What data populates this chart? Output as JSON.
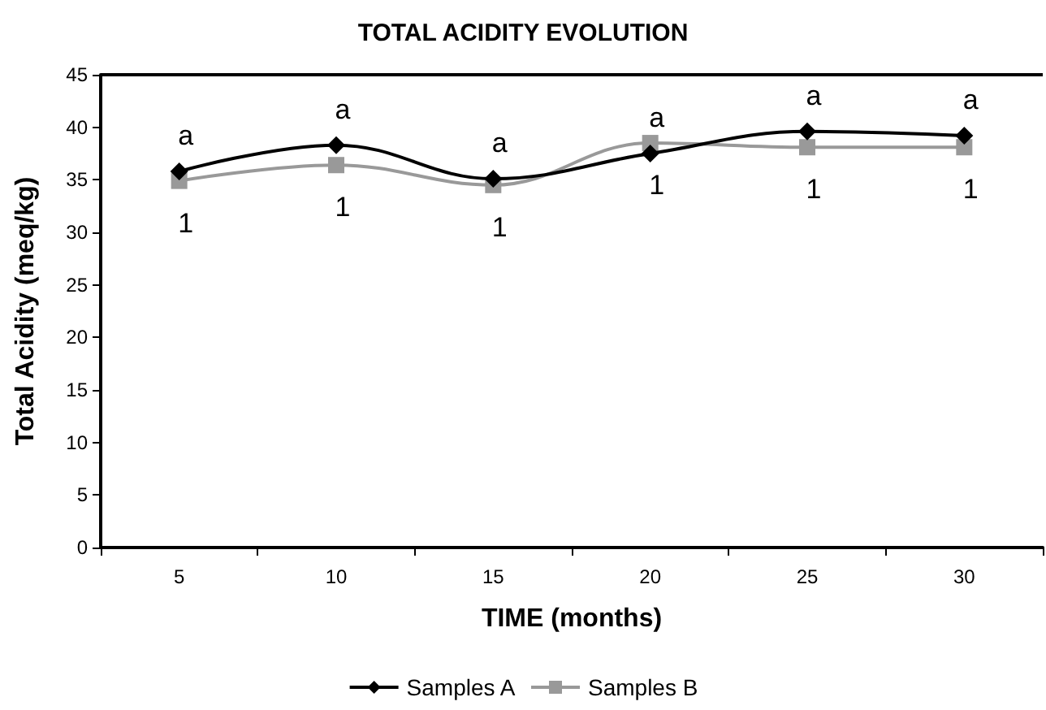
{
  "chart_data": {
    "type": "line",
    "title": "TOTAL ACIDITY EVOLUTION",
    "xlabel": "TIME (months)",
    "ylabel": "Total Acidity (meq/kg)",
    "categories": [
      "5",
      "10",
      "15",
      "20",
      "25",
      "30"
    ],
    "series": [
      {
        "name": "Samples A",
        "color": "#000000",
        "marker": "diamond",
        "values": [
          35.8,
          38.3,
          35.1,
          37.5,
          39.6,
          39.2
        ]
      },
      {
        "name": "Samples B",
        "color": "#999999",
        "marker": "square",
        "values": [
          34.9,
          36.4,
          34.5,
          38.5,
          38.1,
          38.1
        ]
      }
    ],
    "annotations": [
      {
        "text": "a",
        "x": "5",
        "y": 35.8
      },
      {
        "text": "a",
        "x": "10",
        "y": 38.3
      },
      {
        "text": "a",
        "x": "15",
        "y": 35.1
      },
      {
        "text": "a",
        "x": "20",
        "y": 37.5
      },
      {
        "text": "a",
        "x": "25",
        "y": 39.6
      },
      {
        "text": "a",
        "x": "30",
        "y": 39.2
      },
      {
        "text": "1",
        "x": "5",
        "y": 34.9
      },
      {
        "text": "1",
        "x": "10",
        "y": 36.4
      },
      {
        "text": "1",
        "x": "15",
        "y": 34.5
      },
      {
        "text": "1",
        "x": "20",
        "y": 38.5
      },
      {
        "text": "1",
        "x": "25",
        "y": 38.1
      },
      {
        "text": "1",
        "x": "30",
        "y": 38.1
      }
    ],
    "ylim": [
      0,
      45
    ],
    "yticks": [
      0,
      5,
      10,
      15,
      20,
      25,
      30,
      35,
      40,
      45
    ],
    "grid": false,
    "legend": "bottom"
  }
}
